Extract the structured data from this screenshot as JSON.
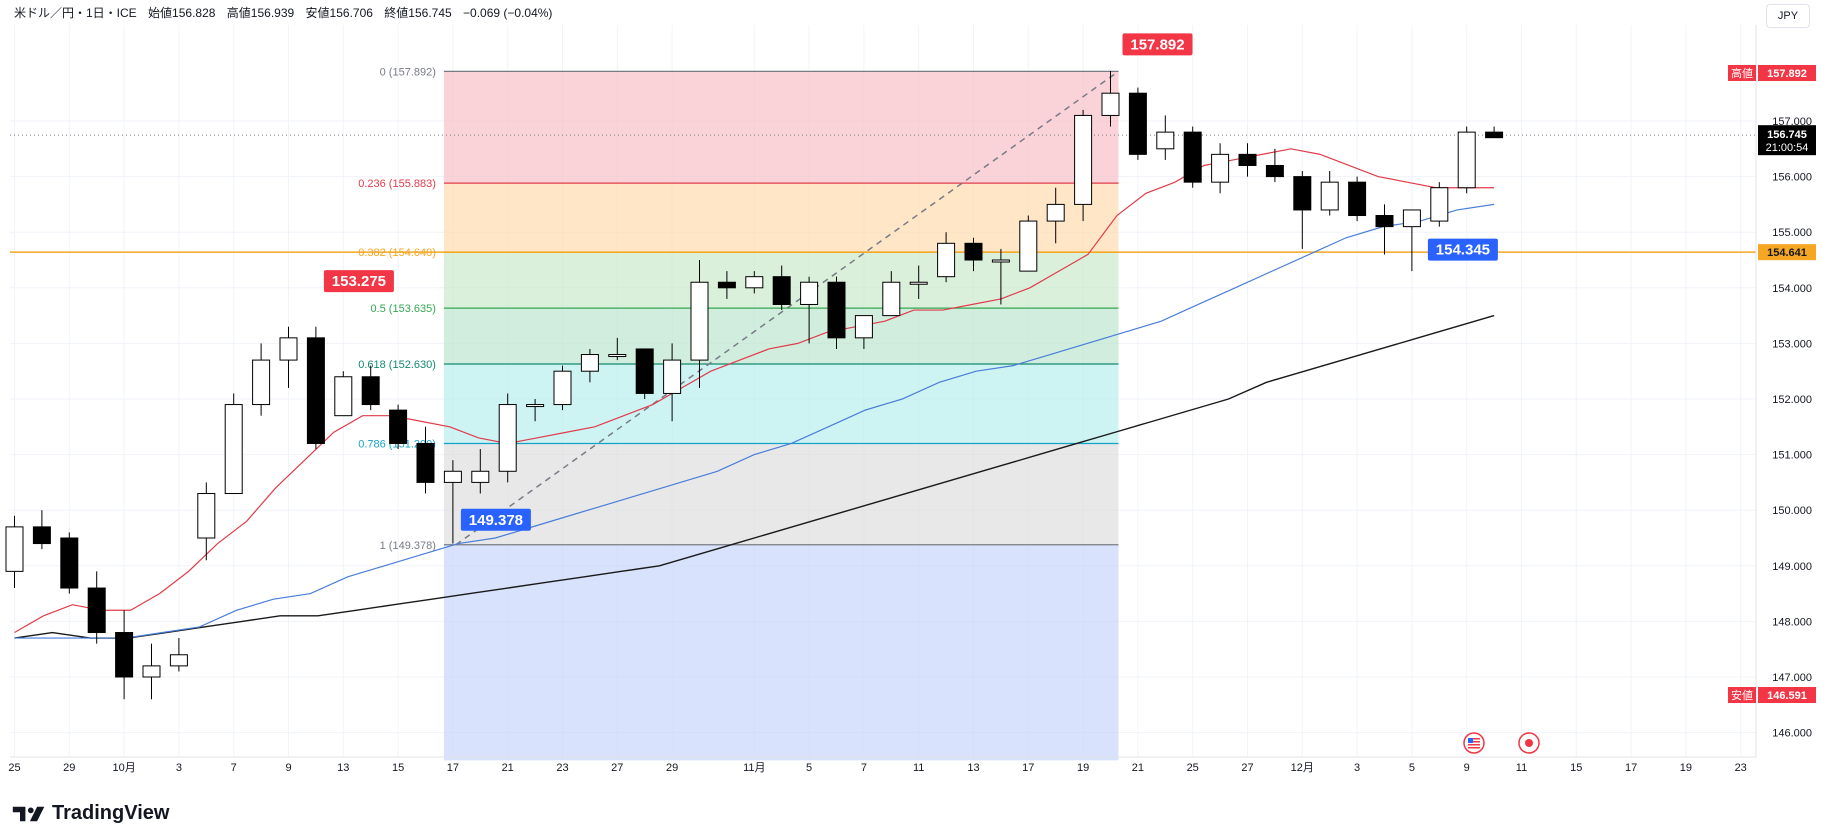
{
  "header": {
    "symbol": "米ドル／円・1日・ICE",
    "open_label": "始値",
    "open": "156.828",
    "high_label": "高値",
    "high": "156.939",
    "low_label": "安値",
    "low": "156.706",
    "close_label": "終値",
    "close": "156.745",
    "change": "−0.069 (−0.04%)"
  },
  "currency": "JPY",
  "logo": "TradingView",
  "colors": {
    "up_candle": "#ffffff",
    "down_candle": "#000000",
    "ma_short": "#e03c4a",
    "ma_mid": "#4a7ed8",
    "ma_long": "#1a1a1a",
    "red_label": "#f23645",
    "blue_label": "#2962ff",
    "orange_line": "#f5a623"
  },
  "chart_data": {
    "type": "candlestick",
    "y_ticks": [
      "157.000",
      "156.000",
      "155.000",
      "154.000",
      "153.000",
      "152.000",
      "151.000",
      "150.000",
      "149.000",
      "148.000",
      "147.000",
      "146.000"
    ],
    "ylim": [
      145.5,
      158.8
    ],
    "x_ticks": [
      {
        "label": "25",
        "i": 0
      },
      {
        "label": "29",
        "i": 2
      },
      {
        "label": "10月",
        "i": 4
      },
      {
        "label": "3",
        "i": 6
      },
      {
        "label": "7",
        "i": 8
      },
      {
        "label": "9",
        "i": 10
      },
      {
        "label": "13",
        "i": 12
      },
      {
        "label": "15",
        "i": 14
      },
      {
        "label": "17",
        "i": 16
      },
      {
        "label": "21",
        "i": 18
      },
      {
        "label": "23",
        "i": 20
      },
      {
        "label": "27",
        "i": 22
      },
      {
        "label": "29",
        "i": 24
      },
      {
        "label": "11月",
        "i": 27
      },
      {
        "label": "5",
        "i": 29
      },
      {
        "label": "7",
        "i": 31
      },
      {
        "label": "11",
        "i": 33
      },
      {
        "label": "13",
        "i": 35
      },
      {
        "label": "17",
        "i": 37
      },
      {
        "label": "19",
        "i": 39
      },
      {
        "label": "21",
        "i": 41
      },
      {
        "label": "25",
        "i": 43
      },
      {
        "label": "27",
        "i": 45
      },
      {
        "label": "12月",
        "i": 47
      },
      {
        "label": "3",
        "i": 49
      },
      {
        "label": "5",
        "i": 51
      },
      {
        "label": "9",
        "i": 53
      },
      {
        "label": "11",
        "i": 55
      },
      {
        "label": "15",
        "i": 57
      },
      {
        "label": "17",
        "i": 59
      },
      {
        "label": "19",
        "i": 61
      },
      {
        "label": "23",
        "i": 63
      }
    ],
    "candles": [
      {
        "o": 148.9,
        "h": 149.9,
        "l": 148.6,
        "c": 149.7
      },
      {
        "o": 149.7,
        "h": 150.0,
        "l": 149.3,
        "c": 149.4
      },
      {
        "o": 149.5,
        "h": 149.6,
        "l": 148.5,
        "c": 148.6
      },
      {
        "o": 148.6,
        "h": 148.9,
        "l": 147.6,
        "c": 147.8
      },
      {
        "o": 147.8,
        "h": 148.2,
        "l": 146.6,
        "c": 147.0
      },
      {
        "o": 147.0,
        "h": 147.6,
        "l": 146.6,
        "c": 147.2
      },
      {
        "o": 147.2,
        "h": 147.7,
        "l": 147.1,
        "c": 147.4
      },
      {
        "o": 149.5,
        "h": 150.5,
        "l": 149.1,
        "c": 150.3
      },
      {
        "o": 150.3,
        "h": 152.1,
        "l": 150.3,
        "c": 151.9
      },
      {
        "o": 151.9,
        "h": 153.0,
        "l": 151.7,
        "c": 152.7
      },
      {
        "o": 152.7,
        "h": 153.3,
        "l": 152.2,
        "c": 153.1
      },
      {
        "o": 153.1,
        "h": 153.3,
        "l": 151.1,
        "c": 151.2
      },
      {
        "o": 151.7,
        "h": 152.5,
        "l": 151.7,
        "c": 152.4
      },
      {
        "o": 152.4,
        "h": 152.6,
        "l": 151.8,
        "c": 151.9
      },
      {
        "o": 151.8,
        "h": 151.9,
        "l": 151.1,
        "c": 151.2
      },
      {
        "o": 151.2,
        "h": 151.5,
        "l": 150.3,
        "c": 150.5
      },
      {
        "o": 150.5,
        "h": 150.9,
        "l": 149.4,
        "c": 150.7
      },
      {
        "o": 150.5,
        "h": 151.1,
        "l": 150.3,
        "c": 150.7
      },
      {
        "o": 150.7,
        "h": 152.1,
        "l": 150.5,
        "c": 151.9
      },
      {
        "o": 151.9,
        "h": 152.0,
        "l": 151.6,
        "c": 151.9
      },
      {
        "o": 151.9,
        "h": 152.6,
        "l": 151.8,
        "c": 152.5
      },
      {
        "o": 152.5,
        "h": 152.9,
        "l": 152.3,
        "c": 152.8
      },
      {
        "o": 152.8,
        "h": 153.1,
        "l": 152.7,
        "c": 152.8
      },
      {
        "o": 152.9,
        "h": 152.9,
        "l": 152.0,
        "c": 152.1
      },
      {
        "o": 152.1,
        "h": 153.0,
        "l": 151.6,
        "c": 152.7
      },
      {
        "o": 152.7,
        "h": 154.5,
        "l": 152.2,
        "c": 154.1
      },
      {
        "o": 154.1,
        "h": 154.3,
        "l": 153.8,
        "c": 154.0
      },
      {
        "o": 154.0,
        "h": 154.3,
        "l": 153.9,
        "c": 154.2
      },
      {
        "o": 154.2,
        "h": 154.4,
        "l": 153.6,
        "c": 153.7
      },
      {
        "o": 153.7,
        "h": 154.2,
        "l": 153.0,
        "c": 154.1
      },
      {
        "o": 154.1,
        "h": 154.2,
        "l": 152.9,
        "c": 153.1
      },
      {
        "o": 153.1,
        "h": 153.5,
        "l": 152.9,
        "c": 153.5
      },
      {
        "o": 153.5,
        "h": 154.3,
        "l": 153.5,
        "c": 154.1
      },
      {
        "o": 154.1,
        "h": 154.4,
        "l": 153.8,
        "c": 154.1
      },
      {
        "o": 154.2,
        "h": 155.0,
        "l": 154.1,
        "c": 154.8
      },
      {
        "o": 154.8,
        "h": 154.9,
        "l": 154.3,
        "c": 154.5
      },
      {
        "o": 154.5,
        "h": 154.7,
        "l": 153.7,
        "c": 154.5
      },
      {
        "o": 154.3,
        "h": 155.3,
        "l": 154.3,
        "c": 155.2
      },
      {
        "o": 155.2,
        "h": 155.8,
        "l": 154.8,
        "c": 155.5
      },
      {
        "o": 155.5,
        "h": 157.2,
        "l": 155.2,
        "c": 157.1
      },
      {
        "o": 157.1,
        "h": 157.9,
        "l": 156.9,
        "c": 157.5
      },
      {
        "o": 157.5,
        "h": 157.6,
        "l": 156.3,
        "c": 156.4
      },
      {
        "o": 156.5,
        "h": 157.1,
        "l": 156.3,
        "c": 156.8
      },
      {
        "o": 156.8,
        "h": 156.9,
        "l": 155.8,
        "c": 155.9
      },
      {
        "o": 155.9,
        "h": 156.6,
        "l": 155.7,
        "c": 156.4
      },
      {
        "o": 156.4,
        "h": 156.6,
        "l": 156.0,
        "c": 156.2
      },
      {
        "o": 156.2,
        "h": 156.5,
        "l": 155.9,
        "c": 156.0
      },
      {
        "o": 156.0,
        "h": 156.1,
        "l": 154.7,
        "c": 155.4
      },
      {
        "o": 155.4,
        "h": 156.1,
        "l": 155.3,
        "c": 155.9
      },
      {
        "o": 155.9,
        "h": 156.0,
        "l": 155.2,
        "c": 155.3
      },
      {
        "o": 155.3,
        "h": 155.5,
        "l": 154.6,
        "c": 155.1
      },
      {
        "o": 155.1,
        "h": 155.4,
        "l": 154.3,
        "c": 155.4
      },
      {
        "o": 155.2,
        "h": 155.9,
        "l": 155.1,
        "c": 155.8
      },
      {
        "o": 155.8,
        "h": 156.9,
        "l": 155.7,
        "c": 156.8
      },
      {
        "o": 156.8,
        "h": 156.9,
        "l": 156.7,
        "c": 156.7
      }
    ],
    "ma_short_values": [
      147.8,
      148.1,
      148.3,
      148.2,
      148.2,
      148.5,
      148.9,
      149.4,
      149.8,
      150.4,
      150.9,
      151.4,
      151.7,
      151.7,
      151.6,
      151.5,
      151.3,
      151.2,
      151.3,
      151.4,
      151.5,
      151.7,
      151.9,
      152.2,
      152.5,
      152.7,
      152.9,
      153.0,
      153.2,
      153.3,
      153.4,
      153.6,
      153.6,
      153.7,
      153.8,
      154.0,
      154.3,
      154.6,
      155.3,
      155.7,
      155.9,
      156.2,
      156.3,
      156.4,
      156.5,
      156.4,
      156.2,
      156.0,
      155.9,
      155.8,
      155.8,
      155.8
    ],
    "ma_mid_values": [
      147.7,
      147.7,
      147.7,
      147.7,
      147.8,
      147.9,
      148.2,
      148.4,
      148.5,
      148.8,
      149.0,
      149.2,
      149.4,
      149.5,
      149.7,
      149.9,
      150.1,
      150.3,
      150.5,
      150.7,
      151.0,
      151.2,
      151.5,
      151.8,
      152.0,
      152.3,
      152.5,
      152.6,
      152.8,
      153.0,
      153.2,
      153.4,
      153.7,
      154.0,
      154.3,
      154.6,
      154.9,
      155.1,
      155.2,
      155.4,
      155.5
    ],
    "ma_long_values": [
      147.7,
      147.8,
      147.7,
      147.7,
      147.8,
      147.9,
      148.0,
      148.1,
      148.1,
      148.2,
      148.3,
      148.4,
      148.5,
      148.6,
      148.7,
      148.8,
      148.9,
      149.0,
      149.2,
      149.4,
      149.6,
      149.8,
      150.0,
      150.2,
      150.4,
      150.6,
      150.8,
      151.0,
      151.2,
      151.4,
      151.6,
      151.8,
      152.0,
      152.3,
      152.5,
      152.7,
      152.9,
      153.1,
      153.3,
      153.5
    ],
    "fib_levels": [
      {
        "ratio": "0",
        "price": 157.892,
        "label": "0 (157.892)",
        "line_color": "#787b86",
        "fill": "#f8bbc4"
      },
      {
        "ratio": "0.236",
        "price": 155.883,
        "label": "0.236 (155.883)",
        "line_color": "#e03c4a",
        "fill": "#ffd9a8"
      },
      {
        "ratio": "0.382",
        "price": 154.64,
        "label": "0.382 (154.640)",
        "line_color": "#f5a623",
        "fill": "#c6e8c6"
      },
      {
        "ratio": "0.5",
        "price": 153.635,
        "label": "0.5 (153.635)",
        "line_color": "#34a853",
        "fill": "#b9e3cc"
      },
      {
        "ratio": "0.618",
        "price": 152.63,
        "label": "0.618 (152.630)",
        "line_color": "#138a6d",
        "fill": "#b4ecec"
      },
      {
        "ratio": "0.786",
        "price": 151.2,
        "label": "0.786 (151.200)",
        "line_color": "#16a2c8",
        "fill": "#dcdcdc"
      },
      {
        "ratio": "1",
        "price": 149.378,
        "label": "1 (149.378)",
        "line_color": "#787b86",
        "fill": "#c5d3fb"
      }
    ],
    "fib_bottom_price": 145.5,
    "callouts": [
      {
        "text": "157.892",
        "color": "red",
        "price": 157.892,
        "i": 40
      },
      {
        "text": "153.275",
        "color": "red",
        "price": 153.275,
        "i": 11
      },
      {
        "text": "149.378",
        "color": "blue",
        "price": 149.378,
        "i": 16
      },
      {
        "text": "154.345",
        "color": "blue",
        "price": 154.345,
        "i": 51
      }
    ],
    "support_line": {
      "price": 154.641,
      "label": "154.641"
    },
    "price_tags": {
      "high_label": "高値",
      "high": "157.892",
      "last": "156.745",
      "countdown": "21:00:54",
      "low_label": "安値",
      "low": "146.591"
    },
    "event_icons": [
      "us-flag-icon",
      "event-dot-icon"
    ]
  }
}
